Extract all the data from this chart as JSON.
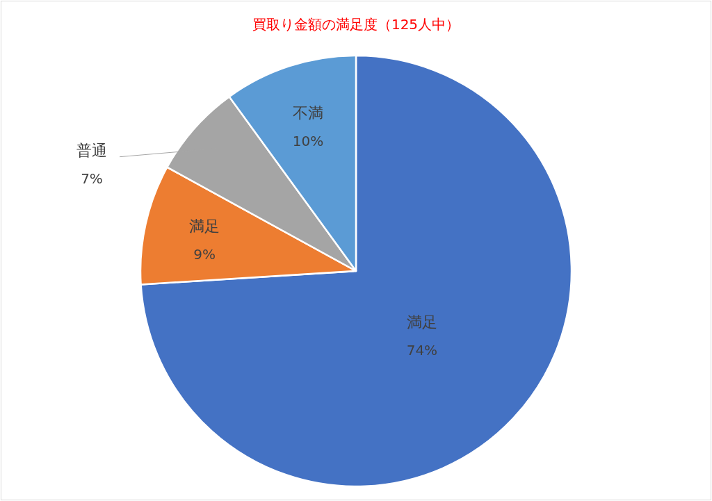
{
  "chart_data": {
    "type": "pie",
    "title": "買取り金額の満足度（125人中）",
    "categories": [
      "満足",
      "満足",
      "普通",
      "不満"
    ],
    "values": [
      74,
      9,
      7,
      10
    ],
    "value_labels": [
      "74%",
      "9%",
      "7%",
      "10%"
    ],
    "colors": [
      "#4472c4",
      "#ed7d31",
      "#a5a5a5",
      "#5b9bd5"
    ]
  }
}
